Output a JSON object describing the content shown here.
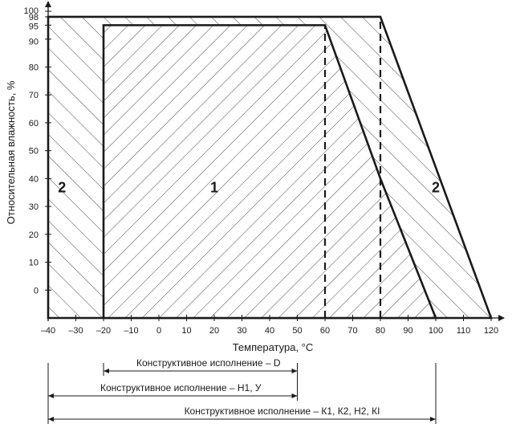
{
  "chart_data": {
    "type": "area",
    "title": "",
    "xlabel": "Температура, °С",
    "ylabel": "Относительная влажность, %",
    "xlim": [
      -40,
      120
    ],
    "ylim": [
      -10,
      100
    ],
    "x_ticks": [
      -40,
      -30,
      -20,
      -10,
      0,
      10,
      20,
      30,
      40,
      50,
      60,
      70,
      80,
      90,
      100,
      110,
      120
    ],
    "x_tick_labels": [
      "–40",
      "–30",
      "–20",
      "–10",
      "0",
      "10",
      "20",
      "30",
      "40",
      "50",
      "60",
      "70",
      "80",
      "90",
      "100",
      "110",
      "120"
    ],
    "y_ticks": [
      0,
      10,
      20,
      30,
      40,
      50,
      60,
      70,
      80,
      90,
      95,
      98,
      100
    ],
    "y_tick_labels": [
      "0",
      "10",
      "20",
      "30",
      "40",
      "50",
      "60",
      "70",
      "80",
      "90",
      "95",
      "98",
      "100"
    ],
    "grid": false,
    "regions": [
      {
        "label": "1",
        "boundary": [
          [
            -20,
            -10
          ],
          [
            -20,
            95
          ],
          [
            60,
            95
          ],
          [
            80,
            40
          ],
          [
            100,
            -10
          ]
        ],
        "hatch": "forward"
      },
      {
        "label": "2",
        "boundary": [
          [
            -40,
            -10
          ],
          [
            -40,
            98
          ],
          [
            80,
            98
          ],
          [
            120,
            -10
          ]
        ],
        "hatch": "backward"
      }
    ],
    "region_labels": [
      {
        "text": "1",
        "x": 20,
        "y": 35
      },
      {
        "text": "2",
        "x": -35,
        "y": 35
      },
      {
        "text": "2",
        "x": 100,
        "y": 35
      }
    ],
    "dashed_lines": [
      {
        "x": 60,
        "from": -10,
        "to": 95
      },
      {
        "x": 80,
        "from": -10,
        "to": 98
      }
    ],
    "ranges": [
      {
        "label": "Конструктивное исполнение – D",
        "from": -20,
        "to": 50
      },
      {
        "label": "Конструктивное исполнение – Н1, У",
        "from": -40,
        "to": 50
      },
      {
        "label": "Конструктивное исполнение – К1, К2, Н2, КI",
        "from": -40,
        "to": 100
      }
    ]
  }
}
